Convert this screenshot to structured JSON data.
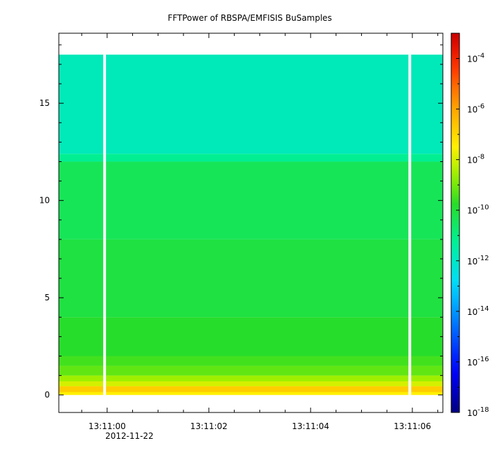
{
  "chart_data": {
    "type": "heatmap",
    "title": "FFTPower of RBSPA/EMFISIS  BuSamples",
    "xlabel": "",
    "ylabel": "",
    "x_tick_labels": [
      "13:11:00",
      "13:11:02",
      "13:11:04",
      "13:11:06"
    ],
    "x_tick_values": [
      0,
      2,
      4,
      6
    ],
    "x_date_label": "2012-11-22",
    "xlim_seconds_after_13_11_00": [
      -0.95,
      6.6
    ],
    "ylim": [
      -0.9,
      18.6
    ],
    "y_ticks": [
      0,
      5,
      10,
      15
    ],
    "y_tick_labels": [
      "0",
      "5",
      "10",
      "15"
    ],
    "data_y_extent": [
      0,
      17.5
    ],
    "gaps_seconds_after_13_11_00": [
      -0.05,
      5.95
    ],
    "colorbar": {
      "scale": "log",
      "range": [
        1e-18,
        0.001
      ],
      "tick_exponents": [
        -4,
        -6,
        -8,
        -10,
        -12,
        -14,
        -16,
        -18
      ],
      "tick_base": "10"
    },
    "bands": [
      {
        "y_from": 0.0,
        "y_to": 0.15,
        "level_exp": -7.5
      },
      {
        "y_from": 0.15,
        "y_to": 0.45,
        "level_exp": -6.8
      },
      {
        "y_from": 0.45,
        "y_to": 0.7,
        "level_exp": -8.0
      },
      {
        "y_from": 0.7,
        "y_to": 1.0,
        "level_exp": -8.6
      },
      {
        "y_from": 1.0,
        "y_to": 1.5,
        "level_exp": -9.2
      },
      {
        "y_from": 1.5,
        "y_to": 2.0,
        "level_exp": -9.5
      },
      {
        "y_from": 2.0,
        "y_to": 4.0,
        "level_exp": -9.8
      },
      {
        "y_from": 4.0,
        "y_to": 8.0,
        "level_exp": -10.1
      },
      {
        "y_from": 8.0,
        "y_to": 12.0,
        "level_exp": -10.4
      },
      {
        "y_from": 12.0,
        "y_to": 12.4,
        "level_exp": -11.2
      },
      {
        "y_from": 12.4,
        "y_to": 17.5,
        "level_exp": -11.8
      }
    ]
  }
}
